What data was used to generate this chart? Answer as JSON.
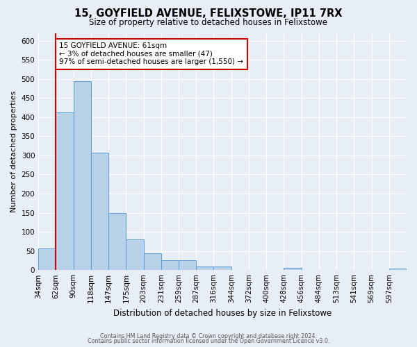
{
  "title": "15, GOYFIELD AVENUE, FELIXSTOWE, IP11 7RX",
  "subtitle": "Size of property relative to detached houses in Felixstowe",
  "xlabel": "Distribution of detached houses by size in Felixstowe",
  "ylabel": "Number of detached properties",
  "bin_labels": [
    "34sqm",
    "62sqm",
    "90sqm",
    "118sqm",
    "147sqm",
    "175sqm",
    "203sqm",
    "231sqm",
    "259sqm",
    "287sqm",
    "316sqm",
    "344sqm",
    "372sqm",
    "400sqm",
    "428sqm",
    "456sqm",
    "484sqm",
    "513sqm",
    "541sqm",
    "569sqm",
    "597sqm"
  ],
  "bar_values": [
    57,
    413,
    493,
    307,
    149,
    81,
    44,
    25,
    25,
    10,
    9,
    0,
    0,
    0,
    5,
    0,
    0,
    0,
    0,
    0,
    4
  ],
  "bar_color": "#b8d0e8",
  "bar_edge_color": "#5b9bd5",
  "ylim": [
    0,
    620
  ],
  "yticks": [
    0,
    50,
    100,
    150,
    200,
    250,
    300,
    350,
    400,
    450,
    500,
    550,
    600
  ],
  "vline_x": 1,
  "vline_color": "#cc0000",
  "annotation_title": "15 GOYFIELD AVENUE: 61sqm",
  "annotation_line1": "← 3% of detached houses are smaller (47)",
  "annotation_line2": "97% of semi-detached houses are larger (1,550) →",
  "annotation_box_color": "#ffffff",
  "annotation_box_edge": "#cc0000",
  "footer1": "Contains HM Land Registry data © Crown copyright and database right 2024.",
  "footer2": "Contains public sector information licensed under the Open Government Licence v3.0.",
  "bg_color": "#e8eef5",
  "plot_bg_color": "#e8eef5",
  "grid_color": "#ffffff"
}
